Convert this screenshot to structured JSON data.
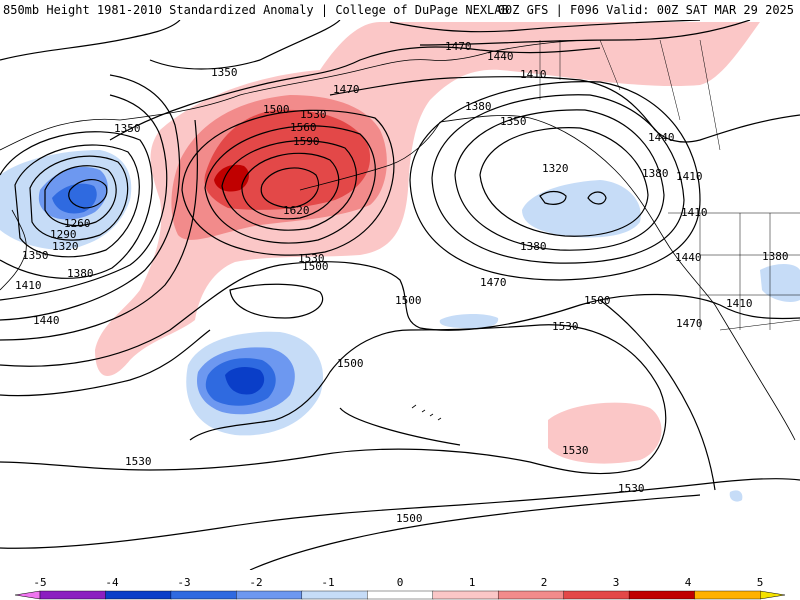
{
  "header": {
    "left": "850mb Height 1981-2010 Standardized Anomaly | College of DuPage NEXLAB",
    "right": "00Z GFS | F096 Valid: 00Z SAT MAR 29 2025"
  },
  "contour_labels": [
    "1470",
    "1440",
    "1410",
    "1350",
    "1470",
    "1380",
    "1350",
    "1500",
    "1530",
    "1560",
    "1590",
    "1620",
    "1320",
    "1440",
    "1380",
    "1410",
    "1260",
    "1290",
    "1320",
    "1350",
    "1380",
    "1410",
    "1440",
    "1350",
    "1380",
    "1410",
    "1530",
    "1500",
    "1470",
    "1440",
    "1410",
    "1380",
    "1500",
    "1500",
    "1470",
    "1500",
    "1530",
    "1530",
    "1530",
    "1530",
    "1500",
    "1500"
  ],
  "colorbar": {
    "ticks": [
      "-5",
      "-4",
      "-3",
      "-2",
      "-1",
      "0",
      "1",
      "2",
      "3",
      "4",
      "5"
    ],
    "colors": [
      "#f074f0",
      "#8b1fc0",
      "#0a3ec8",
      "#2f6ae0",
      "#6d98f0",
      "#c6dcf7",
      "#ffffff",
      "#fbc7c7",
      "#f28b8b",
      "#e34848",
      "#c00000",
      "#ffb100",
      "#f4e100"
    ]
  },
  "anomaly_colors": {
    "neg_1": "#c6dcf7",
    "neg_2": "#6d98f0",
    "neg_3": "#2f6ae0",
    "neg_4": "#0a3ec8",
    "pos_1": "#fbc7c7",
    "pos_2": "#f28b8b",
    "pos_3": "#e34848",
    "pos_4": "#c00000"
  }
}
